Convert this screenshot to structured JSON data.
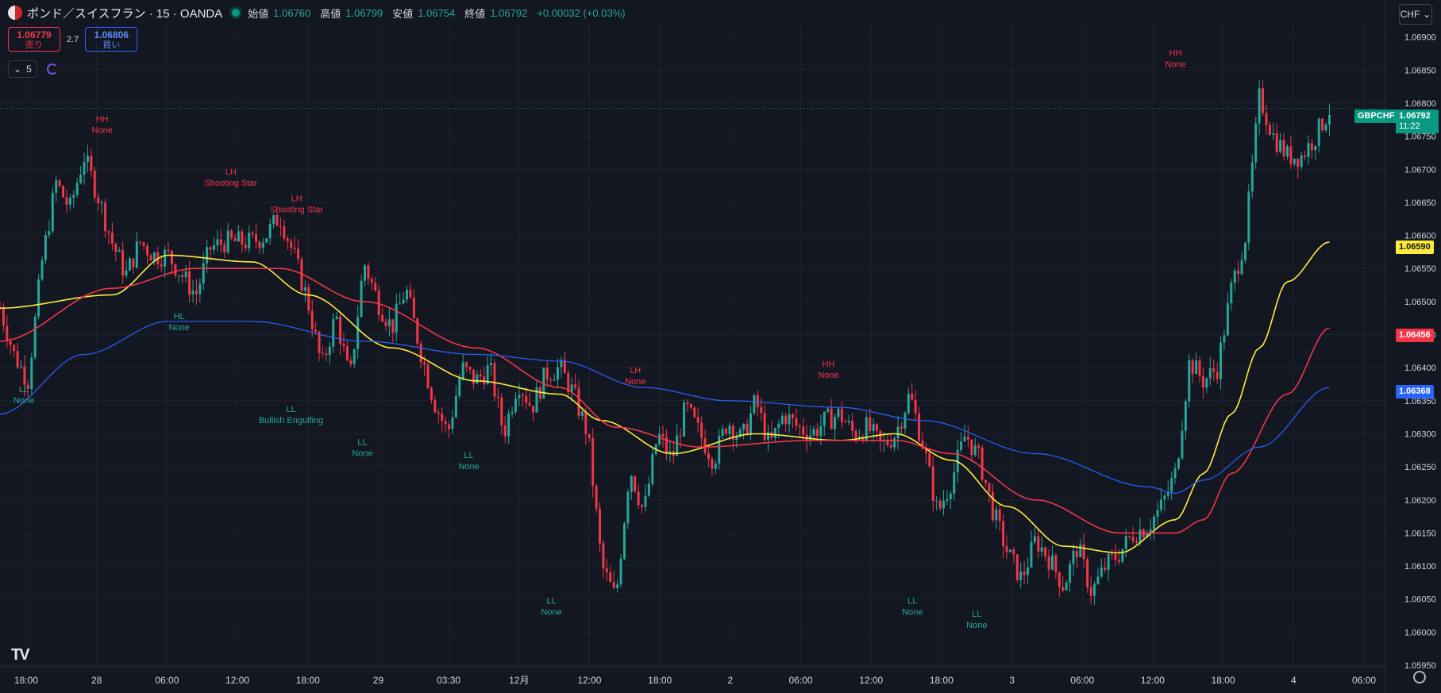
{
  "header": {
    "symbol_title": "ポンド／スイスフラン · 15 · OANDA",
    "open_label": "始値",
    "open": "1.06760",
    "high_label": "高値",
    "high": "1.06799",
    "low_label": "安値",
    "low": "1.06754",
    "close_label": "終値",
    "close": "1.06792",
    "change": "+0.00032 (+0.03%)"
  },
  "trade": {
    "sell_price": "1.06779",
    "sell_label": "売り",
    "buy_price": "1.06806",
    "buy_label": "買い",
    "spread": "2.7"
  },
  "indicators": {
    "count": "5"
  },
  "currency": "CHF",
  "price_tags": {
    "symbol": "GBPCHF",
    "last_price": "1.06792",
    "countdown": "11:22",
    "yellow": "1.06590",
    "red": "1.06456",
    "blue": "1.06368"
  },
  "colors": {
    "background": "#131722",
    "up": "#26a69a",
    "down": "#f23645",
    "ema_fast": "#ffeb3b",
    "ema_mid": "#f23645",
    "ema_slow": "#2962ff"
  },
  "chart_data": {
    "type": "candlestick",
    "title": "",
    "xlabel": "",
    "ylabel": "",
    "ylim": [
      1.0595,
      1.0692
    ],
    "y_ticks": [
      "1.06900",
      "1.06850",
      "1.06800",
      "1.06750",
      "1.06700",
      "1.06650",
      "1.06600",
      "1.06550",
      "1.06500",
      "1.06450",
      "1.06400",
      "1.06350",
      "1.06300",
      "1.06250",
      "1.06200",
      "1.06150",
      "1.06100",
      "1.06050",
      "1.06000",
      "1.05950"
    ],
    "x_ticks": [
      "18:00",
      "28",
      "06:00",
      "12:00",
      "18:00",
      "29",
      "03:30",
      "12月",
      "12:00",
      "18:00",
      "2",
      "06:00",
      "12:00",
      "18:00",
      "3",
      "06:00",
      "12:00",
      "18:00",
      "4",
      "06:00"
    ],
    "price_keypoints": [
      [
        0,
        1.0649
      ],
      [
        1,
        1.0642
      ],
      [
        2,
        1.0638
      ],
      [
        3,
        1.0656
      ],
      [
        4,
        1.0668
      ],
      [
        5,
        1.0664
      ],
      [
        6,
        1.0672
      ],
      [
        7,
        1.0666
      ],
      [
        8,
        1.0659
      ],
      [
        9,
        1.0654
      ],
      [
        10,
        1.0659
      ],
      [
        11,
        1.0657
      ],
      [
        12,
        1.0657
      ],
      [
        13,
        1.0654
      ],
      [
        14,
        1.0651
      ],
      [
        15,
        1.0658
      ],
      [
        16,
        1.0659
      ],
      [
        17,
        1.0659
      ],
      [
        18,
        1.0659
      ],
      [
        19,
        1.066
      ],
      [
        20,
        1.0663
      ],
      [
        21,
        1.0657
      ],
      [
        22,
        1.065
      ],
      [
        23,
        1.064
      ],
      [
        24,
        1.0648
      ],
      [
        25,
        1.0638
      ],
      [
        26,
        1.0656
      ],
      [
        27,
        1.065
      ],
      [
        28,
        1.0646
      ],
      [
        29,
        1.0652
      ],
      [
        30,
        1.0643
      ],
      [
        31,
        1.0635
      ],
      [
        32,
        1.063
      ],
      [
        33,
        1.064
      ],
      [
        34,
        1.0638
      ],
      [
        35,
        1.064
      ],
      [
        36,
        1.063
      ],
      [
        37,
        1.0638
      ],
      [
        38,
        1.0634
      ],
      [
        39,
        1.0639
      ],
      [
        40,
        1.064
      ],
      [
        41,
        1.0636
      ],
      [
        42,
        1.063
      ],
      [
        43,
        1.061
      ],
      [
        44,
        1.0605
      ],
      [
        45,
        1.0625
      ],
      [
        46,
        1.0618
      ],
      [
        47,
        1.063
      ],
      [
        48,
        1.0626
      ],
      [
        49,
        1.0634
      ],
      [
        50,
        1.063
      ],
      [
        51,
        1.0626
      ],
      [
        52,
        1.0632
      ],
      [
        53,
        1.0629
      ],
      [
        54,
        1.0635
      ],
      [
        55,
        1.0628
      ],
      [
        56,
        1.0633
      ],
      [
        57,
        1.0631
      ],
      [
        58,
        1.063
      ],
      [
        59,
        1.0632
      ],
      [
        60,
        1.0633
      ],
      [
        61,
        1.063
      ],
      [
        62,
        1.0631
      ],
      [
        63,
        1.0628
      ],
      [
        64,
        1.063
      ],
      [
        65,
        1.0636
      ],
      [
        66,
        1.0628
      ],
      [
        67,
        1.0618
      ],
      [
        68,
        1.0623
      ],
      [
        69,
        1.063
      ],
      [
        70,
        1.0626
      ],
      [
        71,
        1.0618
      ],
      [
        72,
        1.0612
      ],
      [
        73,
        1.0608
      ],
      [
        74,
        1.0614
      ],
      [
        75,
        1.0611
      ],
      [
        76,
        1.0607
      ],
      [
        77,
        1.0613
      ],
      [
        78,
        1.0606
      ],
      [
        79,
        1.061
      ],
      [
        80,
        1.0612
      ],
      [
        81,
        1.0615
      ],
      [
        82,
        1.0616
      ],
      [
        83,
        1.0619
      ],
      [
        84,
        1.0624
      ],
      [
        85,
        1.0641
      ],
      [
        86,
        1.0638
      ],
      [
        87,
        1.064
      ],
      [
        88,
        1.0652
      ],
      [
        89,
        1.066
      ],
      [
        90,
        1.0681
      ],
      [
        91,
        1.0675
      ],
      [
        92,
        1.0672
      ],
      [
        93,
        1.0672
      ],
      [
        94,
        1.0675
      ],
      [
        95,
        1.0679
      ]
    ],
    "series": [
      {
        "name": "",
        "color": "#ffeb3b",
        "points": [
          [
            0,
            1.0649
          ],
          [
            8,
            1.0651
          ],
          [
            12,
            1.0657
          ],
          [
            18,
            1.0656
          ],
          [
            22,
            1.0651
          ],
          [
            28,
            1.0643
          ],
          [
            34,
            1.0638
          ],
          [
            40,
            1.0636
          ],
          [
            43,
            1.0632
          ],
          [
            48,
            1.0627
          ],
          [
            54,
            1.063
          ],
          [
            60,
            1.0629
          ],
          [
            64,
            1.063
          ],
          [
            68,
            1.0626
          ],
          [
            72,
            1.0619
          ],
          [
            76,
            1.0613
          ],
          [
            80,
            1.0612
          ],
          [
            84,
            1.0617
          ],
          [
            86,
            1.0624
          ],
          [
            88,
            1.0633
          ],
          [
            90,
            1.0643
          ],
          [
            92,
            1.0653
          ],
          [
            95,
            1.0659
          ]
        ]
      },
      {
        "name": "",
        "color": "#f23645",
        "points": [
          [
            0,
            1.0644
          ],
          [
            8,
            1.0652
          ],
          [
            14,
            1.0655
          ],
          [
            20,
            1.0655
          ],
          [
            26,
            1.065
          ],
          [
            34,
            1.0643
          ],
          [
            40,
            1.0637
          ],
          [
            44,
            1.0631
          ],
          [
            50,
            1.0628
          ],
          [
            58,
            1.0629
          ],
          [
            64,
            1.0629
          ],
          [
            68,
            1.0627
          ],
          [
            74,
            1.062
          ],
          [
            80,
            1.0615
          ],
          [
            84,
            1.0615
          ],
          [
            86,
            1.0617
          ],
          [
            88,
            1.0624
          ],
          [
            92,
            1.0636
          ],
          [
            95,
            1.0646
          ]
        ]
      },
      {
        "name": "",
        "color": "#2962ff",
        "points": [
          [
            0,
            1.0633
          ],
          [
            6,
            1.0642
          ],
          [
            12,
            1.0647
          ],
          [
            18,
            1.0647
          ],
          [
            26,
            1.0644
          ],
          [
            34,
            1.0642
          ],
          [
            40,
            1.0641
          ],
          [
            46,
            1.0637
          ],
          [
            52,
            1.0635
          ],
          [
            60,
            1.0634
          ],
          [
            66,
            1.0632
          ],
          [
            74,
            1.0627
          ],
          [
            82,
            1.0622
          ],
          [
            84,
            1.0621
          ],
          [
            86,
            1.0623
          ],
          [
            90,
            1.0628
          ],
          [
            95,
            1.0637
          ]
        ]
      }
    ],
    "annotations": [
      {
        "type": "HH",
        "pattern": "None",
        "x": 7.3,
        "y": 1.0675,
        "color": "red",
        "position": "above"
      },
      {
        "type": "LH",
        "pattern": "Shooting Star",
        "x": 16.5,
        "y": 1.0667,
        "color": "red",
        "position": "above"
      },
      {
        "type": "LH",
        "pattern": "Shooting Star",
        "x": 21.2,
        "y": 1.0663,
        "color": "red",
        "position": "above"
      },
      {
        "type": "LL",
        "pattern": "None",
        "x": 1.7,
        "y": 1.0638,
        "color": "green",
        "position": "below"
      },
      {
        "type": "HL",
        "pattern": "None",
        "x": 12.8,
        "y": 1.0649,
        "color": "green",
        "position": "below"
      },
      {
        "type": "LL",
        "pattern": "Bullish Engulfing",
        "x": 20.8,
        "y": 1.0635,
        "color": "green",
        "position": "below"
      },
      {
        "type": "LL",
        "pattern": "None",
        "x": 25.9,
        "y": 1.063,
        "color": "green",
        "position": "below"
      },
      {
        "type": "LL",
        "pattern": "None",
        "x": 33.5,
        "y": 1.0628,
        "color": "green",
        "position": "below"
      },
      {
        "type": "LL",
        "pattern": "None",
        "x": 39.4,
        "y": 1.0606,
        "color": "green",
        "position": "below"
      },
      {
        "type": "LH",
        "pattern": "None",
        "x": 45.4,
        "y": 1.0637,
        "color": "red",
        "position": "above"
      },
      {
        "type": "HH",
        "pattern": "None",
        "x": 59.2,
        "y": 1.0638,
        "color": "red",
        "position": "above"
      },
      {
        "type": "LL",
        "pattern": "None",
        "x": 65.2,
        "y": 1.0606,
        "color": "green",
        "position": "below"
      },
      {
        "type": "LL",
        "pattern": "None",
        "x": 69.8,
        "y": 1.0604,
        "color": "green",
        "position": "below"
      },
      {
        "type": "HH",
        "pattern": "None",
        "x": 84.0,
        "y": 1.0685,
        "color": "red",
        "position": "above"
      }
    ]
  }
}
